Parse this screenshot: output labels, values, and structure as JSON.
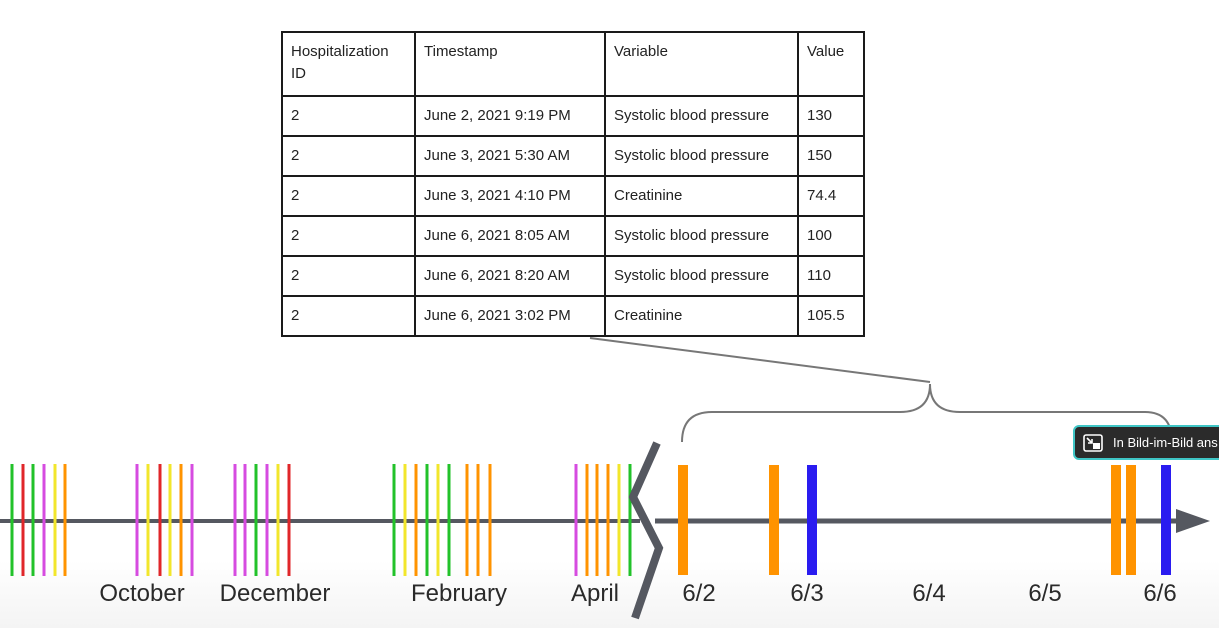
{
  "table": {
    "headers": [
      "Hospitalization ID",
      "Timestamp",
      "Variable",
      "Value"
    ],
    "rows": [
      {
        "id": "2",
        "timestamp": "June 2, 2021 9:19 PM",
        "variable": "Systolic blood pressure",
        "value": "130"
      },
      {
        "id": "2",
        "timestamp": "June 3, 2021 5:30 AM",
        "variable": "Systolic blood pressure",
        "value": "150"
      },
      {
        "id": "2",
        "timestamp": "June 3, 2021 4:10 PM",
        "variable": "Creatinine",
        "value": "74.4"
      },
      {
        "id": "2",
        "timestamp": "June 6, 2021 8:05 AM",
        "variable": "Systolic blood pressure",
        "value": "100"
      },
      {
        "id": "2",
        "timestamp": "June 6, 2021 8:20 AM",
        "variable": "Systolic blood pressure",
        "value": "110"
      },
      {
        "id": "2",
        "timestamp": "June 6, 2021 3:02 PM",
        "variable": "Creatinine",
        "value": "105.5"
      }
    ]
  },
  "timeline": {
    "month_labels": [
      "October",
      "December",
      "February",
      "April"
    ],
    "day_labels": [
      "6/2",
      "6/3",
      "6/4",
      "6/5",
      "6/6"
    ],
    "colors": {
      "green": "#22c22a",
      "magenta": "#d64be0",
      "yellow": "#f2e62b",
      "red": "#e0262a",
      "orange": "#ff9300",
      "blue": "#2a1cf0",
      "axis": "#555860"
    }
  },
  "overlay": {
    "pip_label": "In Bild-im-Bild ans",
    "pip_icon": "picture-in-picture-icon"
  }
}
